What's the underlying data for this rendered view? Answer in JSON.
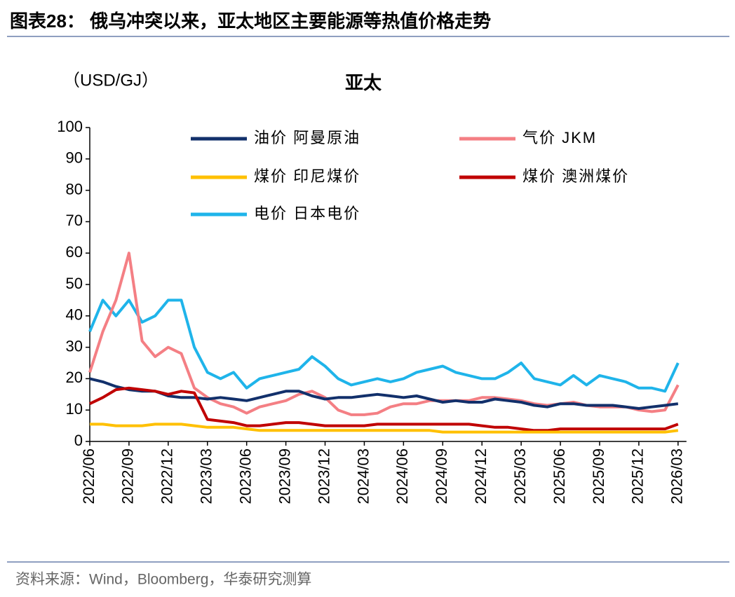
{
  "header": {
    "title": "图表28： 俄乌冲突以来，亚太地区主要能源等热值价格走势"
  },
  "chart_data": {
    "type": "line",
    "title": "亚太",
    "y_label": "（USD/GJ）",
    "categories": [
      "2022/06",
      null,
      null,
      "2022/09",
      null,
      null,
      "2022/12",
      null,
      null,
      "2023/03",
      null,
      null,
      "2023/06",
      null,
      null,
      "2023/09",
      null,
      null,
      "2023/12",
      null,
      null,
      "2024/03",
      null,
      null,
      "2024/06",
      null,
      null,
      "2024/09",
      null,
      null,
      "2024/12",
      null,
      null,
      "2025/03",
      null,
      null,
      "2025/06",
      null,
      null,
      "2025/09",
      null,
      null,
      "2025/12",
      null,
      null,
      "2026/03"
    ],
    "ylim": [
      0,
      100
    ],
    "yticks": [
      0,
      10,
      20,
      30,
      40,
      50,
      60,
      70,
      80,
      90,
      100
    ],
    "series": [
      {
        "name": "油价 阿曼原油",
        "color": "#12306b",
        "values": [
          20,
          19,
          17.5,
          16.5,
          16,
          16,
          14.5,
          14,
          14,
          13.5,
          14,
          13.5,
          13,
          14,
          15,
          16,
          16,
          14.5,
          13.5,
          14,
          14,
          14.5,
          15,
          14.5,
          14,
          14.5,
          13.5,
          12.5,
          13,
          12.5,
          12.5,
          13.5,
          13,
          12.5,
          11.5,
          11,
          12,
          12,
          11.5,
          11.5,
          11.5,
          11,
          10.5,
          11,
          11.5,
          12
        ]
      },
      {
        "name": "气价 JKM",
        "color": "#f47f84",
        "values": [
          22,
          35,
          45,
          60,
          32,
          27,
          30,
          28,
          17,
          14,
          12,
          11,
          9,
          11,
          12,
          13,
          15,
          16,
          14,
          10,
          8.5,
          8.5,
          9,
          11,
          12,
          12,
          13,
          13,
          13,
          13,
          14,
          14,
          13.5,
          13,
          12,
          11.5,
          12,
          12.5,
          11.5,
          11,
          11,
          11,
          10,
          9.5,
          10,
          18
        ]
      },
      {
        "name": "煤价 印尼煤价",
        "color": "#ffc000",
        "values": [
          5.5,
          5.5,
          5,
          5,
          5,
          5.5,
          5.5,
          5.5,
          5,
          4.5,
          4.5,
          4.5,
          4,
          3.5,
          3.5,
          3.5,
          3.5,
          3.5,
          3.5,
          3.5,
          3.5,
          3.5,
          3.5,
          3.5,
          3.5,
          3.5,
          3.5,
          3,
          3,
          3,
          3,
          3,
          3,
          3,
          3,
          3,
          3,
          3,
          3,
          3,
          3,
          3,
          3,
          3,
          3,
          3.5
        ]
      },
      {
        "name": "煤价 澳洲煤价",
        "color": "#c00000",
        "values": [
          12,
          14,
          16.5,
          17,
          16.5,
          16,
          15,
          16,
          15.5,
          7,
          6.5,
          6,
          5,
          5,
          5.5,
          6,
          6,
          5.5,
          5,
          5,
          5,
          5,
          5.5,
          5.5,
          5.5,
          5.5,
          5.5,
          5.5,
          5.5,
          5.5,
          5,
          4.5,
          4.5,
          4,
          3.5,
          3.5,
          4,
          4,
          4,
          4,
          4,
          4,
          4,
          4,
          4,
          5.5
        ]
      },
      {
        "name": "电价 日本电价",
        "color": "#1fb4ea",
        "values": [
          35,
          45,
          40,
          45,
          38,
          40,
          45,
          45,
          30,
          22,
          20,
          22,
          17,
          20,
          21,
          22,
          23,
          27,
          24,
          20,
          18,
          19,
          20,
          19,
          20,
          22,
          23,
          24,
          22,
          21,
          20,
          20,
          22,
          25,
          20,
          19,
          18,
          21,
          18,
          21,
          20,
          19,
          17,
          17,
          16,
          25
        ]
      }
    ]
  },
  "footer": {
    "source": "资料来源：Wind，Bloomberg，华泰研究测算"
  }
}
